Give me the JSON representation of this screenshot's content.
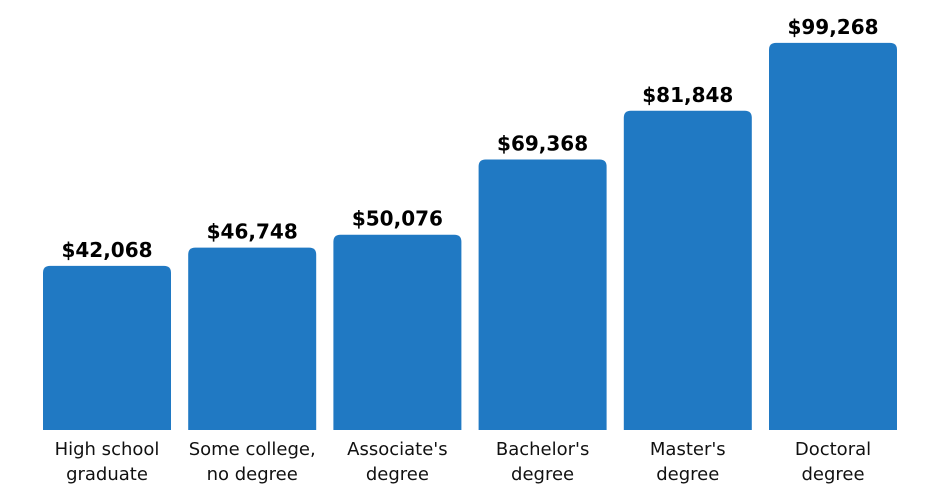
{
  "chart_data": {
    "type": "bar",
    "categories": [
      [
        "High school",
        "graduate"
      ],
      [
        "Some college,",
        "no degree"
      ],
      [
        "Associate's",
        "degree"
      ],
      [
        "Bachelor's",
        "degree"
      ],
      [
        "Master's",
        "degree"
      ],
      [
        "Doctoral",
        "degree"
      ]
    ],
    "values": [
      42068,
      46748,
      50076,
      69368,
      81848,
      99268
    ],
    "value_labels": [
      "$42,068",
      "$46,748",
      "$50,076",
      "$69,368",
      "$81,848",
      "$99,268"
    ],
    "title": "",
    "xlabel": "",
    "ylabel": "",
    "ylim": [
      0,
      100000
    ],
    "grid": false,
    "legend": "none",
    "bar_color": "#2079c3"
  }
}
